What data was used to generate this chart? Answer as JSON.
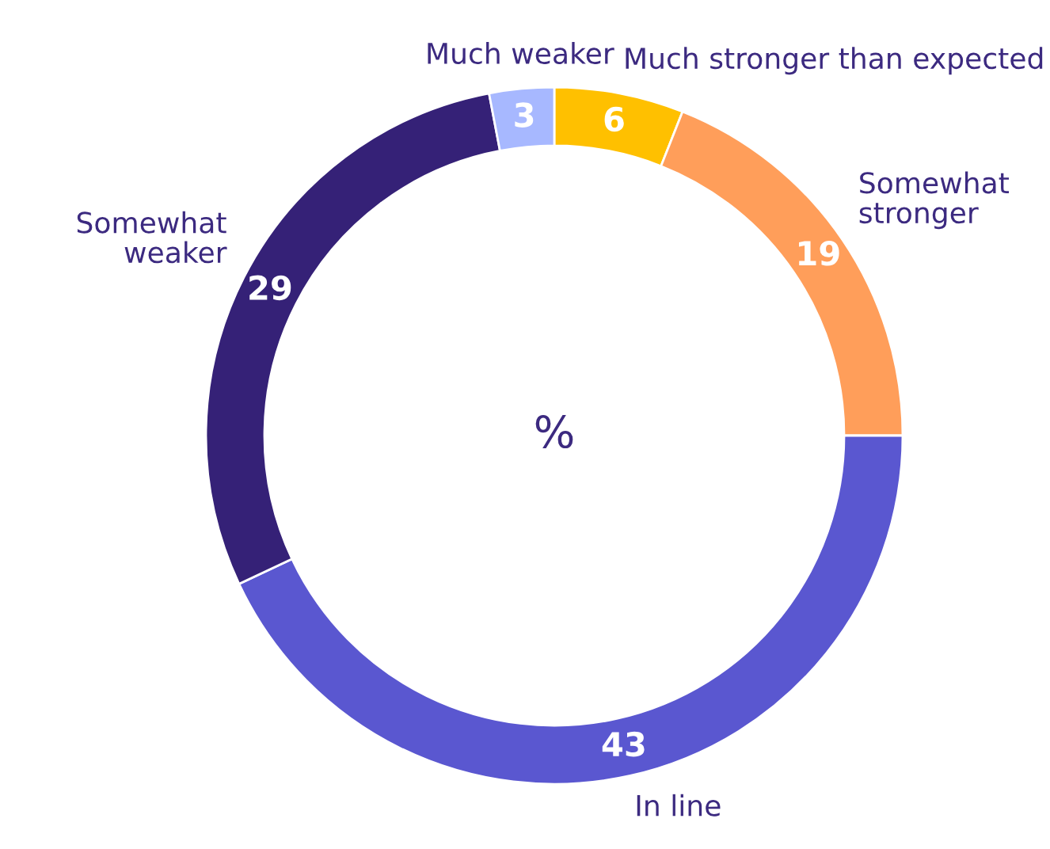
{
  "chart_data": {
    "type": "donut",
    "title": "%",
    "categories": [
      "Much stronger than expected",
      "Somewhat\nstronger",
      "In line",
      "Somewhat\nweaker",
      "Much weaker"
    ],
    "values": [
      6,
      19,
      43,
      29,
      3
    ],
    "colors": [
      "#ffc000",
      "#ff9e5a",
      "#5a57d0",
      "#352177",
      "#a7b8ff"
    ],
    "data_labels": true,
    "legend": false
  }
}
